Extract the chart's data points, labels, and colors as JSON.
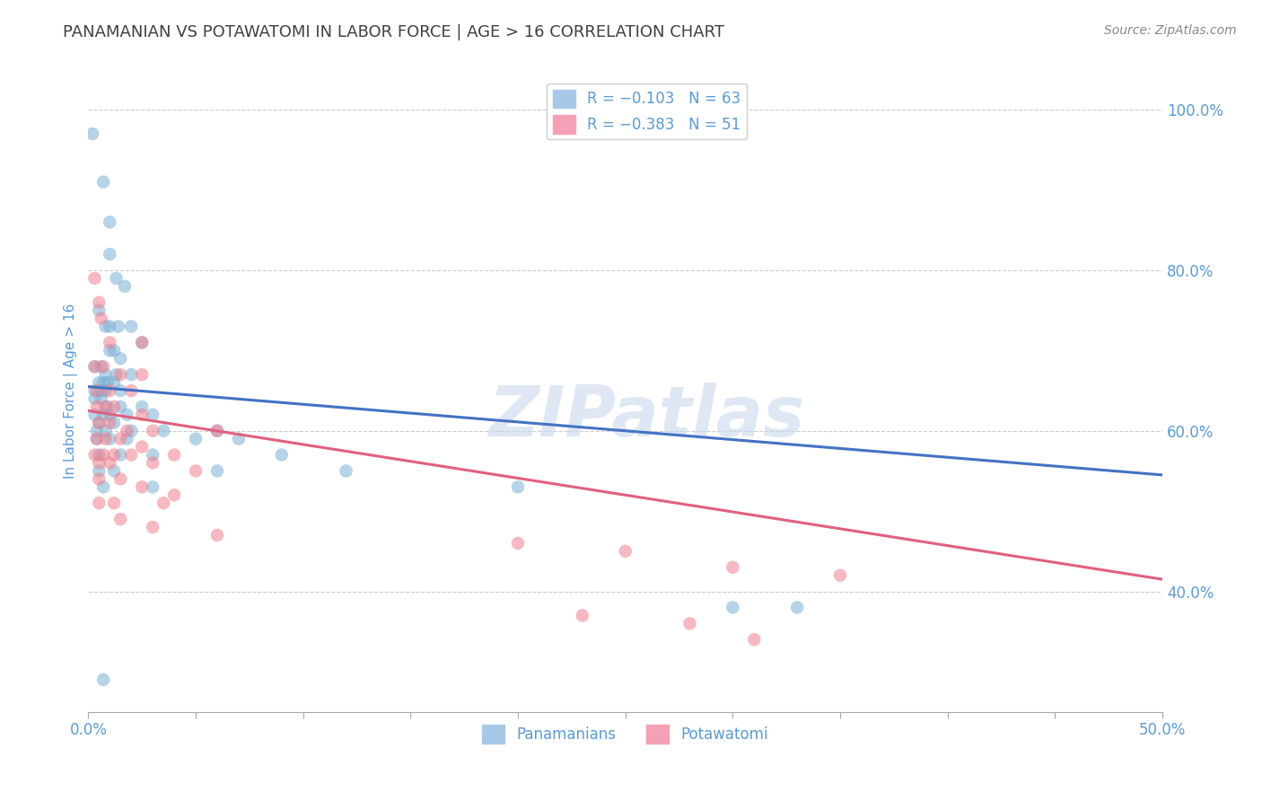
{
  "title": "PANAMANIAN VS POTAWATOMI IN LABOR FORCE | AGE > 16 CORRELATION CHART",
  "source_text": "Source: ZipAtlas.com",
  "ylabel": "In Labor Force | Age > 16",
  "xlim": [
    0.0,
    0.5
  ],
  "ylim": [
    0.25,
    1.05
  ],
  "ytick_labels": [
    "40.0%",
    "60.0%",
    "80.0%",
    "100.0%"
  ],
  "ytick_positions": [
    0.4,
    0.6,
    0.8,
    1.0
  ],
  "panamanian_color": "#7bafd4",
  "potawatomi_color": "#f08090",
  "panamanian_trendline_color": "#4472c4",
  "potawatomi_trendline_color": "#e06080",
  "watermark": "ZIPatlas",
  "background_color": "#ffffff",
  "grid_color": "#cccccc",
  "title_color": "#404040",
  "axis_color": "#5b9bd5",
  "pan_trend_x": [
    0.0,
    0.5
  ],
  "pan_trend_y": [
    0.655,
    0.545
  ],
  "pot_trend_x": [
    0.0,
    0.5
  ],
  "pot_trend_y": [
    0.625,
    0.415
  ],
  "panamanian_points": [
    [
      0.002,
      0.97
    ],
    [
      0.007,
      0.91
    ],
    [
      0.01,
      0.86
    ],
    [
      0.01,
      0.82
    ],
    [
      0.013,
      0.79
    ],
    [
      0.017,
      0.78
    ],
    [
      0.005,
      0.75
    ],
    [
      0.008,
      0.73
    ],
    [
      0.01,
      0.73
    ],
    [
      0.014,
      0.73
    ],
    [
      0.02,
      0.73
    ],
    [
      0.025,
      0.71
    ],
    [
      0.01,
      0.7
    ],
    [
      0.012,
      0.7
    ],
    [
      0.015,
      0.69
    ],
    [
      0.003,
      0.68
    ],
    [
      0.006,
      0.68
    ],
    [
      0.008,
      0.67
    ],
    [
      0.013,
      0.67
    ],
    [
      0.02,
      0.67
    ],
    [
      0.005,
      0.66
    ],
    [
      0.007,
      0.66
    ],
    [
      0.009,
      0.66
    ],
    [
      0.012,
      0.66
    ],
    [
      0.003,
      0.65
    ],
    [
      0.006,
      0.65
    ],
    [
      0.008,
      0.65
    ],
    [
      0.015,
      0.65
    ],
    [
      0.003,
      0.64
    ],
    [
      0.006,
      0.64
    ],
    [
      0.009,
      0.63
    ],
    [
      0.015,
      0.63
    ],
    [
      0.025,
      0.63
    ],
    [
      0.003,
      0.62
    ],
    [
      0.007,
      0.62
    ],
    [
      0.01,
      0.62
    ],
    [
      0.018,
      0.62
    ],
    [
      0.03,
      0.62
    ],
    [
      0.005,
      0.61
    ],
    [
      0.012,
      0.61
    ],
    [
      0.004,
      0.6
    ],
    [
      0.008,
      0.6
    ],
    [
      0.02,
      0.6
    ],
    [
      0.035,
      0.6
    ],
    [
      0.06,
      0.6
    ],
    [
      0.004,
      0.59
    ],
    [
      0.01,
      0.59
    ],
    [
      0.018,
      0.59
    ],
    [
      0.05,
      0.59
    ],
    [
      0.07,
      0.59
    ],
    [
      0.005,
      0.57
    ],
    [
      0.015,
      0.57
    ],
    [
      0.03,
      0.57
    ],
    [
      0.09,
      0.57
    ],
    [
      0.005,
      0.55
    ],
    [
      0.012,
      0.55
    ],
    [
      0.06,
      0.55
    ],
    [
      0.12,
      0.55
    ],
    [
      0.007,
      0.53
    ],
    [
      0.03,
      0.53
    ],
    [
      0.2,
      0.53
    ],
    [
      0.33,
      0.38
    ],
    [
      0.007,
      0.29
    ],
    [
      0.3,
      0.38
    ]
  ],
  "potawatomi_points": [
    [
      0.003,
      0.79
    ],
    [
      0.005,
      0.76
    ],
    [
      0.006,
      0.74
    ],
    [
      0.01,
      0.71
    ],
    [
      0.025,
      0.71
    ],
    [
      0.003,
      0.68
    ],
    [
      0.007,
      0.68
    ],
    [
      0.015,
      0.67
    ],
    [
      0.025,
      0.67
    ],
    [
      0.004,
      0.65
    ],
    [
      0.01,
      0.65
    ],
    [
      0.02,
      0.65
    ],
    [
      0.004,
      0.63
    ],
    [
      0.008,
      0.63
    ],
    [
      0.012,
      0.63
    ],
    [
      0.025,
      0.62
    ],
    [
      0.005,
      0.61
    ],
    [
      0.01,
      0.61
    ],
    [
      0.018,
      0.6
    ],
    [
      0.03,
      0.6
    ],
    [
      0.06,
      0.6
    ],
    [
      0.004,
      0.59
    ],
    [
      0.008,
      0.59
    ],
    [
      0.015,
      0.59
    ],
    [
      0.025,
      0.58
    ],
    [
      0.003,
      0.57
    ],
    [
      0.007,
      0.57
    ],
    [
      0.012,
      0.57
    ],
    [
      0.02,
      0.57
    ],
    [
      0.04,
      0.57
    ],
    [
      0.005,
      0.56
    ],
    [
      0.01,
      0.56
    ],
    [
      0.03,
      0.56
    ],
    [
      0.05,
      0.55
    ],
    [
      0.005,
      0.54
    ],
    [
      0.015,
      0.54
    ],
    [
      0.025,
      0.53
    ],
    [
      0.04,
      0.52
    ],
    [
      0.005,
      0.51
    ],
    [
      0.012,
      0.51
    ],
    [
      0.035,
      0.51
    ],
    [
      0.015,
      0.49
    ],
    [
      0.03,
      0.48
    ],
    [
      0.06,
      0.47
    ],
    [
      0.2,
      0.46
    ],
    [
      0.25,
      0.45
    ],
    [
      0.3,
      0.43
    ],
    [
      0.35,
      0.42
    ],
    [
      0.23,
      0.37
    ],
    [
      0.28,
      0.36
    ],
    [
      0.31,
      0.34
    ]
  ]
}
